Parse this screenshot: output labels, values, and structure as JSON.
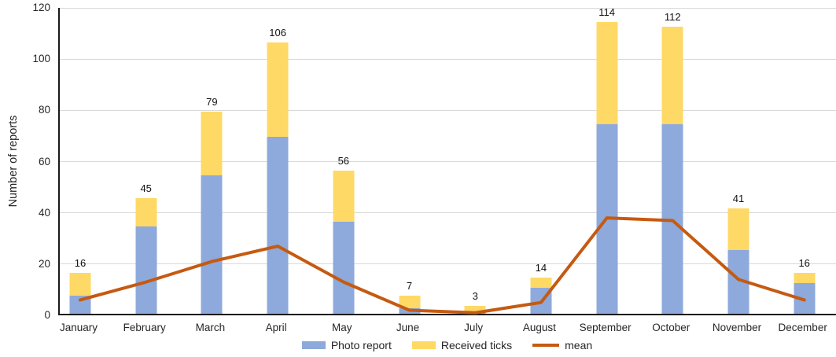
{
  "chart_data": {
    "type": "bar",
    "subtype": "stacked-bar-with-line",
    "title": "",
    "xlabel": "",
    "ylabel": "Number of reports",
    "ylim": [
      0,
      120
    ],
    "yticks": [
      0,
      20,
      40,
      60,
      80,
      100,
      120
    ],
    "grid": "horizontal",
    "legend_position": "bottom-center",
    "stacked": true,
    "categories": [
      "January",
      "February",
      "March",
      "April",
      "May",
      "June",
      "July",
      "August",
      "September",
      "October",
      "November",
      "December"
    ],
    "series": [
      {
        "name": "Photo report",
        "type": "bar",
        "color": "#8EA9DB",
        "values": [
          7,
          34,
          54,
          69,
          36,
          2,
          1,
          10,
          74,
          74,
          25,
          12
        ]
      },
      {
        "name": "Received ticks",
        "type": "bar",
        "color": "#FFD966",
        "values": [
          9,
          11,
          25,
          37,
          20,
          5,
          2,
          4,
          40,
          38,
          16,
          4
        ]
      },
      {
        "name": "mean",
        "type": "line",
        "color": "#C55A11",
        "values": [
          6,
          13,
          21,
          27,
          13,
          2,
          1,
          5,
          38,
          37,
          14,
          6
        ]
      }
    ],
    "bar_totals": [
      16,
      45,
      79,
      106,
      56,
      7,
      3,
      14,
      114,
      112,
      41,
      16
    ],
    "bar_total_labels_shown": true
  },
  "legend": {
    "items": [
      {
        "label": "Photo report",
        "color": "#8EA9DB",
        "swatch": "rect"
      },
      {
        "label": "Received ticks",
        "color": "#FFD966",
        "swatch": "rect"
      },
      {
        "label": "mean",
        "color": "#C55A11",
        "swatch": "line"
      }
    ]
  },
  "colors": {
    "bar_photo_report": "#8EA9DB",
    "bar_received_ticks": "#FFD966",
    "mean_line": "#C55A11",
    "gridline": "#D9D9D9",
    "axis_line": "#1A1A1A",
    "text": "#262626",
    "background": "#FFFFFF"
  }
}
